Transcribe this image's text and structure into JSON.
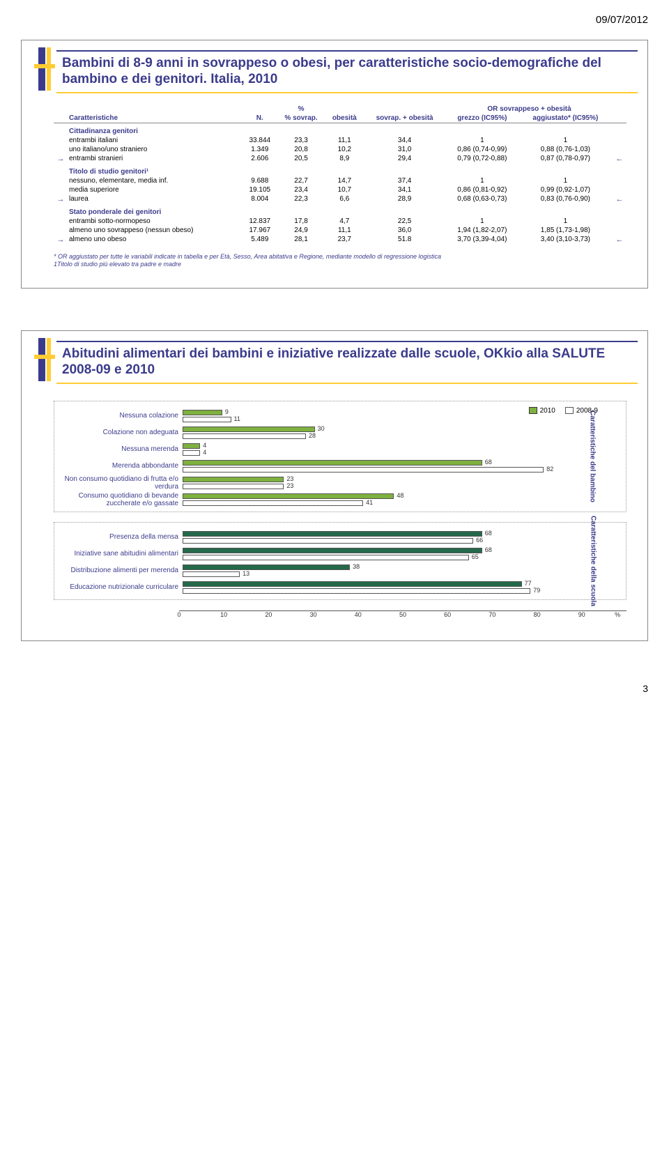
{
  "date": "09/07/2012",
  "page_number": "3",
  "slide1": {
    "title": "Bambini di 8-9 anni in sovrappeso o obesi, per caratteristiche socio-demografiche del bambino e dei genitori. Italia, 2010",
    "header": {
      "col1": "Caratteristiche",
      "col2": "N.",
      "col3": "% sovrap.",
      "col4": "obesità",
      "col5": "sovrap. + obesità",
      "or_group": "OR sovrappeso + obesità",
      "col6": "grezzo (IC95%)",
      "col7": "aggiustato* (IC95%)"
    },
    "groups": [
      {
        "title": "Cittadinanza genitori",
        "rows": [
          {
            "arrowL": "",
            "label": "entrambi italiani",
            "n": "33.844",
            "sov": "23,3",
            "ob": "11,1",
            "tot": "34,4",
            "or1": "1",
            "or2": "1",
            "arrowR": ""
          },
          {
            "arrowL": "",
            "label": "uno italiano/uno straniero",
            "n": "1.349",
            "sov": "20,8",
            "ob": "10,2",
            "tot": "31,0",
            "or1": "0,86 (0,74-0,99)",
            "or2": "0,88 (0,76-1,03)",
            "arrowR": ""
          },
          {
            "arrowL": "→",
            "label": "entrambi stranieri",
            "n": "2.606",
            "sov": "20,5",
            "ob": "8,9",
            "tot": "29,4",
            "or1": "0,79 (0,72-0,88)",
            "or2": "0,87 (0,78-0,97)",
            "arrowR": "←"
          }
        ]
      },
      {
        "title": "Titolo di studio genitori¹",
        "rows": [
          {
            "arrowL": "",
            "label": "nessuno, elementare, media inf.",
            "n": "9.688",
            "sov": "22,7",
            "ob": "14,7",
            "tot": "37,4",
            "or1": "1",
            "or2": "1",
            "arrowR": ""
          },
          {
            "arrowL": "",
            "label": "media superiore",
            "n": "19.105",
            "sov": "23,4",
            "ob": "10,7",
            "tot": "34,1",
            "or1": "0,86 (0,81-0,92)",
            "or2": "0,99 (0,92-1,07)",
            "arrowR": ""
          },
          {
            "arrowL": "→",
            "label": "laurea",
            "n": "8.004",
            "sov": "22,3",
            "ob": "6,6",
            "tot": "28,9",
            "or1": "0,68 (0,63-0,73)",
            "or2": "0,83 (0,76-0,90)",
            "arrowR": "←"
          }
        ]
      },
      {
        "title": "Stato ponderale dei genitori",
        "rows": [
          {
            "arrowL": "",
            "label": "entrambi sotto-normopeso",
            "n": "12.837",
            "sov": "17,8",
            "ob": "4,7",
            "tot": "22,5",
            "or1": "1",
            "or2": "1",
            "arrowR": ""
          },
          {
            "arrowL": "",
            "label": "almeno uno sovrappeso (nessun obeso)",
            "n": "17.967",
            "sov": "24,9",
            "ob": "11,1",
            "tot": "36,0",
            "or1": "1,94 (1,82-2,07)",
            "or2": "1,85 (1,73-1,98)",
            "arrowR": ""
          },
          {
            "arrowL": "→",
            "label": "almeno uno obeso",
            "n": "5.489",
            "sov": "28,1",
            "ob": "23,7",
            "tot": "51.8",
            "or1": "3,70 (3,39-4,04)",
            "or2": "3,40 (3,10-3,73)",
            "arrowR": "←"
          }
        ]
      }
    ],
    "footnote": "* OR aggiustato per tutte le variabili indicate in tabella e per Età, Sesso, Area abitativa e Regione, mediante modello di regressione logistica\n1Titolo di studio più elevato tra padre e madre"
  },
  "slide2": {
    "title": "Abitudini alimentari dei bambini e iniziative realizzate dalle scuole, OKkio alla SALUTE 2008-09 e 2010",
    "legend": {
      "a": "2010",
      "b": "2008-9"
    },
    "colors": {
      "bar2010": "#7eb13f",
      "bar2008h": "#ffffff",
      "bar2008border": "#555555",
      "barSchool2010": "#24694a",
      "barSchool2008": "#ffffff"
    },
    "axis": {
      "max": 100,
      "ticks": [
        0,
        10,
        20,
        30,
        40,
        50,
        60,
        70,
        80,
        90
      ],
      "unit": "%"
    },
    "chartA": {
      "side": "Caratteristiche del bambino",
      "rows": [
        {
          "label": "Nessuna colazione",
          "v1": 9,
          "v2": 11
        },
        {
          "label": "Colazione non adeguata",
          "v1": 30,
          "v2": 28
        },
        {
          "label": "Nessuna merenda",
          "v1": 4,
          "v2": 4
        },
        {
          "label": "Merenda abbondante",
          "v1": 68,
          "v2": 82
        },
        {
          "label": "Non consumo quotidiano di frutta e/o verdura",
          "v1": 23,
          "v2": 23
        },
        {
          "label": "Consumo quotidiano di bevande zuccherate e/o gassate",
          "v1": 48,
          "v2": 41
        }
      ]
    },
    "chartB": {
      "side": "Caratteristiche della scuola",
      "rows": [
        {
          "label": "Presenza della mensa",
          "v1": 68,
          "v2": 66
        },
        {
          "label": "Iniziative sane abitudini alimentari",
          "v1": 68,
          "v2": 65
        },
        {
          "label": "Distribuzione alimenti per merenda",
          "v1": 38,
          "v2": 13
        },
        {
          "label": "Educazione nutrizionale curriculare",
          "v1": 77,
          "v2": 79
        }
      ]
    }
  }
}
